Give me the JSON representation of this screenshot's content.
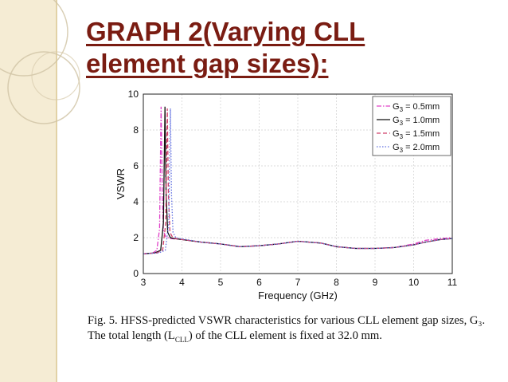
{
  "slide": {
    "title_line1": "GRAPH 2(Varying CLL",
    "title_line2": "element gap sizes):"
  },
  "caption": {
    "label": "Fig. 5.",
    "text": "HFSS-predicted VSWR characteristics for various CLL element gap sizes, G₃. The total length (L",
    "subscript": "CLL",
    "text_end": ") of the CLL element is fixed at 32.0 mm."
  },
  "colors": {
    "title": "#7a1c12",
    "band": "#f5ecd4",
    "series": [
      "#e040c8",
      "#111111",
      "#d0406a",
      "#6070e0"
    ]
  },
  "chart_data": {
    "type": "line",
    "xlabel": "Frequency (GHz)",
    "ylabel": "VSWR",
    "xlim": [
      3,
      11
    ],
    "ylim": [
      0,
      10
    ],
    "xticks": [
      3,
      4,
      5,
      6,
      7,
      8,
      9,
      10,
      11
    ],
    "yticks": [
      0,
      2,
      4,
      6,
      8,
      10
    ],
    "grid": true,
    "legend_position": "top-right",
    "series": [
      {
        "name": "G3 = 0.5mm",
        "style": "dash-dot",
        "x": [
          3.0,
          3.25,
          3.35,
          3.42,
          3.46,
          3.49,
          3.52,
          3.58,
          3.7,
          4.0,
          4.5,
          5.0,
          5.5,
          6.0,
          6.5,
          7.0,
          7.3,
          7.6,
          8.0,
          8.5,
          9.0,
          9.5,
          10.0,
          10.3,
          10.7,
          11.0
        ],
        "y": [
          1.1,
          1.15,
          1.3,
          2.5,
          9.3,
          4.5,
          2.4,
          2.05,
          1.95,
          1.9,
          1.75,
          1.65,
          1.5,
          1.55,
          1.65,
          1.8,
          1.75,
          1.7,
          1.5,
          1.4,
          1.4,
          1.45,
          1.65,
          1.85,
          1.95,
          2.0
        ]
      },
      {
        "name": "G3 = 1.0mm",
        "style": "solid",
        "x": [
          3.0,
          3.3,
          3.45,
          3.52,
          3.56,
          3.59,
          3.63,
          3.7,
          3.8,
          4.0,
          4.5,
          5.0,
          5.5,
          6.0,
          6.5,
          7.0,
          7.3,
          7.6,
          8.0,
          8.5,
          9.0,
          9.5,
          10.0,
          10.3,
          10.7,
          11.0
        ],
        "y": [
          1.1,
          1.15,
          1.3,
          2.8,
          9.3,
          4.5,
          2.3,
          2.0,
          1.95,
          1.9,
          1.75,
          1.65,
          1.5,
          1.55,
          1.65,
          1.8,
          1.75,
          1.7,
          1.5,
          1.4,
          1.4,
          1.45,
          1.6,
          1.75,
          1.9,
          1.95
        ]
      },
      {
        "name": "G3 = 1.5mm",
        "style": "dashed",
        "x": [
          3.0,
          3.35,
          3.5,
          3.58,
          3.62,
          3.65,
          3.69,
          3.76,
          3.85,
          4.0,
          4.5,
          5.0,
          5.5,
          6.0,
          6.5,
          7.0,
          7.3,
          7.6,
          8.0,
          8.5,
          9.0,
          9.5,
          10.0,
          10.3,
          10.7,
          11.0
        ],
        "y": [
          1.1,
          1.15,
          1.3,
          2.8,
          9.2,
          4.4,
          2.3,
          2.0,
          1.95,
          1.9,
          1.75,
          1.65,
          1.5,
          1.55,
          1.65,
          1.8,
          1.75,
          1.7,
          1.5,
          1.4,
          1.4,
          1.45,
          1.6,
          1.75,
          1.9,
          1.95
        ]
      },
      {
        "name": "G3 = 2.0mm",
        "style": "dotted",
        "x": [
          3.0,
          3.4,
          3.57,
          3.66,
          3.7,
          3.73,
          3.77,
          3.84,
          3.95,
          4.1,
          4.5,
          5.0,
          5.5,
          6.0,
          6.5,
          7.0,
          7.3,
          7.6,
          8.0,
          8.5,
          9.0,
          9.5,
          10.0,
          10.3,
          10.7,
          11.0
        ],
        "y": [
          1.1,
          1.15,
          1.3,
          2.8,
          9.2,
          4.4,
          2.3,
          2.0,
          1.95,
          1.9,
          1.75,
          1.65,
          1.5,
          1.55,
          1.65,
          1.8,
          1.75,
          1.7,
          1.5,
          1.4,
          1.4,
          1.45,
          1.6,
          1.75,
          1.9,
          1.95
        ]
      }
    ],
    "legend_labels": [
      {
        "base": "G",
        "sub": "3",
        "rest": " = 0.5mm"
      },
      {
        "base": "G",
        "sub": "3",
        "rest": " = 1.0mm"
      },
      {
        "base": "G",
        "sub": "3",
        "rest": " = 1.5mm"
      },
      {
        "base": "G",
        "sub": "3",
        "rest": " = 2.0mm"
      }
    ]
  }
}
